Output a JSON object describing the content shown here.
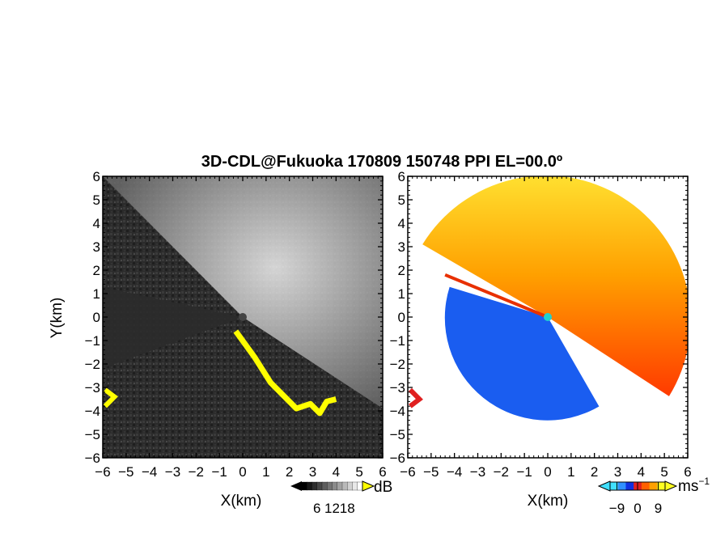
{
  "chart_data": {
    "type": "heatmap",
    "title": "3D-CDL@Fukuoka 170809 150748 PPI EL=00.0º",
    "panels": [
      {
        "name": "signal-intensity",
        "xlabel": "X(km)",
        "ylabel": "Y(km)",
        "xlim": [
          -6,
          6
        ],
        "ylim": [
          -6,
          6
        ],
        "xticks": [
          "−6",
          "−5",
          "−4",
          "−3",
          "−2",
          "−1",
          "0",
          "1",
          "2",
          "3",
          "4",
          "5",
          "6"
        ],
        "yticks": [
          "−6",
          "−5",
          "−4",
          "−3",
          "−2",
          "−1",
          "0",
          "1",
          "2",
          "3",
          "4",
          "5",
          "6"
        ],
        "colorbar": {
          "unit": "dB",
          "ticks": [
            "6",
            "12",
            "18"
          ],
          "range": [
            0,
            24
          ],
          "colors": [
            "#000000",
            "#ffffff"
          ],
          "flag_color": "#ffff00"
        }
      },
      {
        "name": "radial-velocity",
        "xlabel": "X(km)",
        "ylabel": "",
        "xlim": [
          -6,
          6
        ],
        "ylim": [
          -6,
          6
        ],
        "xticks": [
          "−6",
          "−5",
          "−4",
          "−3",
          "−2",
          "−1",
          "0",
          "1",
          "2",
          "3",
          "4",
          "5",
          "6"
        ],
        "yticks": [
          "−6",
          "−5",
          "−4",
          "−3",
          "−2",
          "−1",
          "0",
          "1",
          "2",
          "3",
          "4",
          "5",
          "6"
        ],
        "colorbar": {
          "unit": "ms",
          "unit_exp": "−1",
          "ticks": [
            "−9",
            "0",
            "9"
          ],
          "range": [
            -12,
            12
          ],
          "colors": [
            "#40e0ff",
            "#3090ff",
            "#1030e0",
            "#e02020",
            "#ff6000",
            "#ffa000",
            "#ffff20"
          ]
        }
      }
    ],
    "sectors": {
      "approach_velocity": {
        "from_deg": 163,
        "to_deg": 300,
        "color": "#1a5df0"
      },
      "receding_velocity": {
        "from_deg": -33,
        "to_deg": 150,
        "color": "#ff8c1a"
      },
      "high_intensity": {
        "from_deg": -33,
        "to_deg": 135,
        "color": "#bdbdbd"
      }
    }
  }
}
